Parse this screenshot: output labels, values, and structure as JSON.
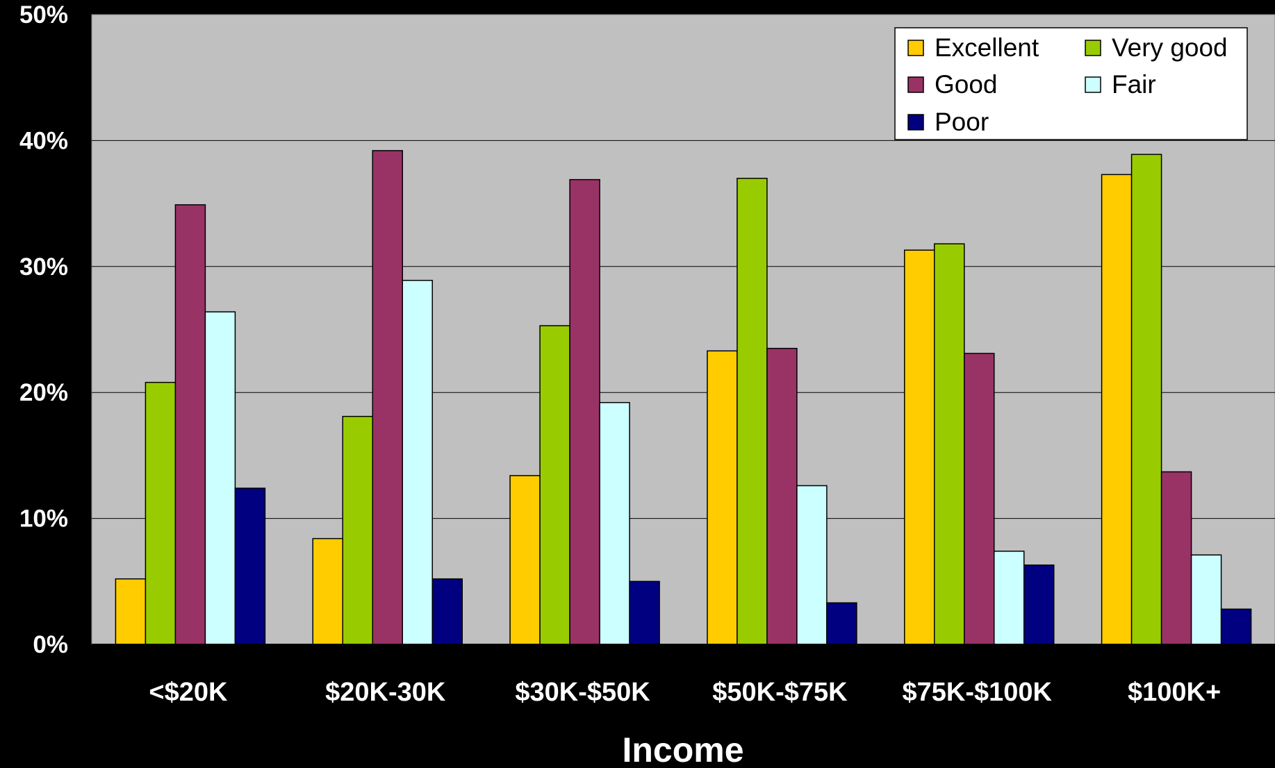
{
  "chart_data": {
    "type": "bar",
    "title": "",
    "xlabel": "Income",
    "ylabel": "",
    "categories": [
      "<$20K",
      "$20K-30K",
      "$30K-$50K",
      "$50K-$75K",
      "$75K-$100K",
      "$100K+"
    ],
    "series": [
      {
        "name": "Excellent",
        "color": "#ffcc00",
        "values": [
          5.2,
          8.4,
          13.4,
          23.3,
          31.3,
          37.3
        ]
      },
      {
        "name": "Very good",
        "color": "#99cc00",
        "values": [
          20.8,
          18.1,
          25.3,
          37.0,
          31.8,
          38.9
        ]
      },
      {
        "name": "Good",
        "color": "#993366",
        "values": [
          34.9,
          39.2,
          36.9,
          23.5,
          23.1,
          13.7
        ]
      },
      {
        "name": "Fair",
        "color": "#ccffff",
        "values": [
          26.4,
          28.9,
          19.2,
          12.6,
          7.4,
          7.1
        ]
      },
      {
        "name": "Poor",
        "color": "#000080",
        "values": [
          12.4,
          5.2,
          5.0,
          3.3,
          6.3,
          2.8
        ]
      }
    ],
    "ylim": [
      0,
      50
    ],
    "yticks": [
      "0%",
      "10%",
      "20%",
      "30%",
      "40%",
      "50%"
    ],
    "grid": true,
    "legend_position": "top-right",
    "plot_background": "#c0c0c0",
    "page_background": "#000000"
  }
}
